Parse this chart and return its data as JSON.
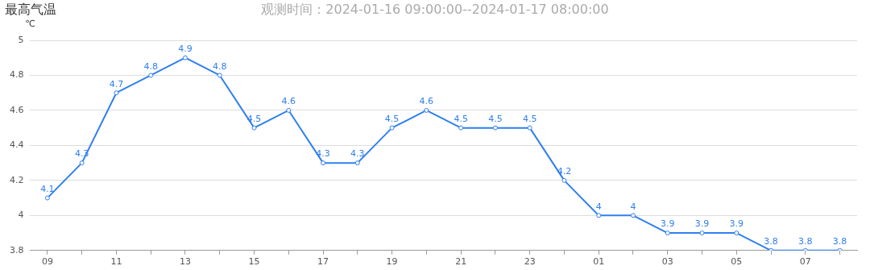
{
  "chart_data": {
    "type": "line",
    "title": "最高气温",
    "subtitle": "观测时间：2024-01-16 09:00:00--2024-01-17 08:00:00",
    "ylabel": "℃",
    "categories": [
      "09",
      null,
      "11",
      null,
      "13",
      null,
      "15",
      null,
      "17",
      null,
      "19",
      null,
      "21",
      null,
      "23",
      null,
      "01",
      null,
      "03",
      null,
      "05",
      null,
      "07",
      null
    ],
    "series": [
      {
        "color": "#2f7fef",
        "values": [
          4.1,
          4.3,
          4.7,
          4.8,
          4.9,
          4.8,
          4.5,
          4.6,
          4.3,
          4.3,
          4.5,
          4.6,
          4.5,
          4.5,
          4.5,
          4.2,
          4,
          4,
          3.9,
          3.9,
          3.9,
          3.8,
          3.8,
          3.8
        ]
      }
    ],
    "ylim": [
      3.8,
      5
    ],
    "yticks": [
      3.8,
      4,
      4.2,
      4.4,
      4.6,
      4.8,
      5
    ],
    "grid": "y",
    "data_labels": true,
    "marker": "circle",
    "legend": false
  }
}
